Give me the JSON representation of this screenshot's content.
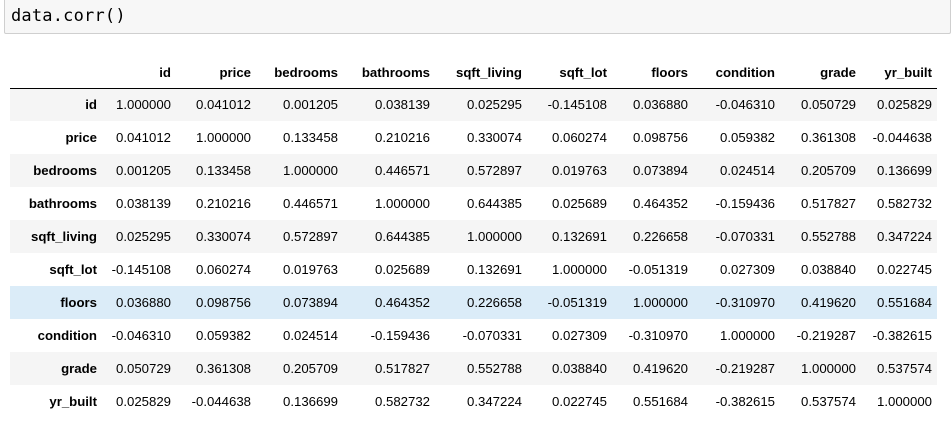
{
  "input": {
    "code": "data.corr()"
  },
  "table": {
    "columns": [
      "id",
      "price",
      "bedrooms",
      "bathrooms",
      "sqft_living",
      "sqft_lot",
      "floors",
      "condition",
      "grade",
      "yr_built"
    ],
    "highlighted_row": "floors",
    "rows": [
      {
        "label": "id",
        "values": [
          "1.000000",
          "0.041012",
          "0.001205",
          "0.038139",
          "0.025295",
          "-0.145108",
          "0.036880",
          "-0.046310",
          "0.050729",
          "0.025829"
        ]
      },
      {
        "label": "price",
        "values": [
          "0.041012",
          "1.000000",
          "0.133458",
          "0.210216",
          "0.330074",
          "0.060274",
          "0.098756",
          "0.059382",
          "0.361308",
          "-0.044638"
        ]
      },
      {
        "label": "bedrooms",
        "values": [
          "0.001205",
          "0.133458",
          "1.000000",
          "0.446571",
          "0.572897",
          "0.019763",
          "0.073894",
          "0.024514",
          "0.205709",
          "0.136699"
        ]
      },
      {
        "label": "bathrooms",
        "values": [
          "0.038139",
          "0.210216",
          "0.446571",
          "1.000000",
          "0.644385",
          "0.025689",
          "0.464352",
          "-0.159436",
          "0.517827",
          "0.582732"
        ]
      },
      {
        "label": "sqft_living",
        "values": [
          "0.025295",
          "0.330074",
          "0.572897",
          "0.644385",
          "1.000000",
          "0.132691",
          "0.226658",
          "-0.070331",
          "0.552788",
          "0.347224"
        ]
      },
      {
        "label": "sqft_lot",
        "values": [
          "-0.145108",
          "0.060274",
          "0.019763",
          "0.025689",
          "0.132691",
          "1.000000",
          "-0.051319",
          "0.027309",
          "0.038840",
          "0.022745"
        ]
      },
      {
        "label": "floors",
        "values": [
          "0.036880",
          "0.098756",
          "0.073894",
          "0.464352",
          "0.226658",
          "-0.051319",
          "1.000000",
          "-0.310970",
          "0.419620",
          "0.551684"
        ]
      },
      {
        "label": "condition",
        "values": [
          "-0.046310",
          "0.059382",
          "0.024514",
          "-0.159436",
          "-0.070331",
          "0.027309",
          "-0.310970",
          "1.000000",
          "-0.219287",
          "-0.382615"
        ]
      },
      {
        "label": "grade",
        "values": [
          "0.050729",
          "0.361308",
          "0.205709",
          "0.517827",
          "0.552788",
          "0.038840",
          "0.419620",
          "-0.219287",
          "1.000000",
          "0.537574"
        ]
      },
      {
        "label": "yr_built",
        "values": [
          "0.025829",
          "-0.044638",
          "0.136699",
          "0.582732",
          "0.347224",
          "0.022745",
          "0.551684",
          "-0.382615",
          "0.537574",
          "1.000000"
        ]
      }
    ]
  }
}
